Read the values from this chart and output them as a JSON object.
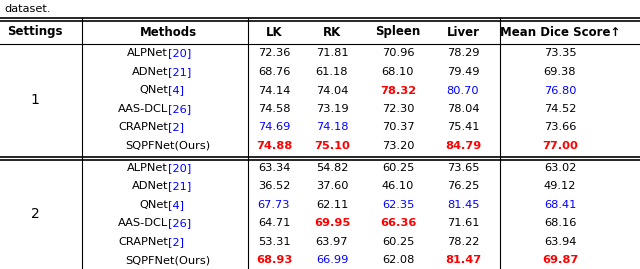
{
  "headers": [
    "Settings",
    "Methods",
    "LK",
    "RK",
    "Spleen",
    "Liver",
    "Mean Dice Score↑"
  ],
  "setting1_rows": [
    {
      "method": [
        "ALPNet",
        "[20]"
      ],
      "method_colors": [
        "black",
        "blue"
      ],
      "values": [
        "72.36",
        "71.81",
        "70.96",
        "78.29",
        "73.35"
      ],
      "value_colors": [
        "black",
        "black",
        "black",
        "black",
        "black"
      ]
    },
    {
      "method": [
        "ADNet",
        "[21]"
      ],
      "method_colors": [
        "black",
        "blue"
      ],
      "values": [
        "68.76",
        "61.18",
        "68.10",
        "79.49",
        "69.38"
      ],
      "value_colors": [
        "black",
        "black",
        "black",
        "black",
        "black"
      ]
    },
    {
      "method": [
        "QNet",
        "[4]"
      ],
      "method_colors": [
        "black",
        "blue"
      ],
      "values": [
        "74.14",
        "74.04",
        "78.32",
        "80.70",
        "76.80"
      ],
      "value_colors": [
        "black",
        "black",
        "red",
        "blue",
        "blue"
      ]
    },
    {
      "method": [
        "AAS-DCL",
        "[26]"
      ],
      "method_colors": [
        "black",
        "blue"
      ],
      "values": [
        "74.58",
        "73.19",
        "72.30",
        "78.04",
        "74.52"
      ],
      "value_colors": [
        "black",
        "black",
        "black",
        "black",
        "black"
      ]
    },
    {
      "method": [
        "CRAPNet",
        "[2]"
      ],
      "method_colors": [
        "black",
        "blue"
      ],
      "values": [
        "74.69",
        "74.18",
        "70.37",
        "75.41",
        "73.66"
      ],
      "value_colors": [
        "blue",
        "blue",
        "black",
        "black",
        "black"
      ]
    },
    {
      "method": [
        "SQPFNet(Ours)",
        ""
      ],
      "method_colors": [
        "black",
        "black"
      ],
      "values": [
        "74.88",
        "75.10",
        "73.20",
        "84.79",
        "77.00"
      ],
      "value_colors": [
        "red",
        "red",
        "black",
        "red",
        "red"
      ]
    }
  ],
  "setting2_rows": [
    {
      "method": [
        "ALPNet",
        "[20]"
      ],
      "method_colors": [
        "black",
        "blue"
      ],
      "values": [
        "63.34",
        "54.82",
        "60.25",
        "73.65",
        "63.02"
      ],
      "value_colors": [
        "black",
        "black",
        "black",
        "black",
        "black"
      ]
    },
    {
      "method": [
        "ADNet",
        "[21]"
      ],
      "method_colors": [
        "black",
        "blue"
      ],
      "values": [
        "36.52",
        "37.60",
        "46.10",
        "76.25",
        "49.12"
      ],
      "value_colors": [
        "black",
        "black",
        "black",
        "black",
        "black"
      ]
    },
    {
      "method": [
        "QNet",
        "[4]"
      ],
      "method_colors": [
        "black",
        "blue"
      ],
      "values": [
        "67.73",
        "62.11",
        "62.35",
        "81.45",
        "68.41"
      ],
      "value_colors": [
        "blue",
        "black",
        "blue",
        "blue",
        "blue"
      ]
    },
    {
      "method": [
        "AAS-DCL",
        "[26]"
      ],
      "method_colors": [
        "black",
        "blue"
      ],
      "values": [
        "64.71",
        "69.95",
        "66.36",
        "71.61",
        "68.16"
      ],
      "value_colors": [
        "black",
        "red",
        "red",
        "black",
        "black"
      ]
    },
    {
      "method": [
        "CRAPNet",
        "[2]"
      ],
      "method_colors": [
        "black",
        "blue"
      ],
      "values": [
        "53.31",
        "63.97",
        "60.25",
        "78.22",
        "63.94"
      ],
      "value_colors": [
        "black",
        "black",
        "black",
        "black",
        "black"
      ]
    },
    {
      "method": [
        "SQPFNet(Ours)",
        ""
      ],
      "method_colors": [
        "black",
        "black"
      ],
      "values": [
        "68.93",
        "66.99",
        "62.08",
        "81.47",
        "69.87"
      ],
      "value_colors": [
        "red",
        "blue",
        "black",
        "red",
        "red"
      ]
    }
  ],
  "bg_color": "white",
  "font_size": 8.2,
  "header_font_size": 8.5
}
